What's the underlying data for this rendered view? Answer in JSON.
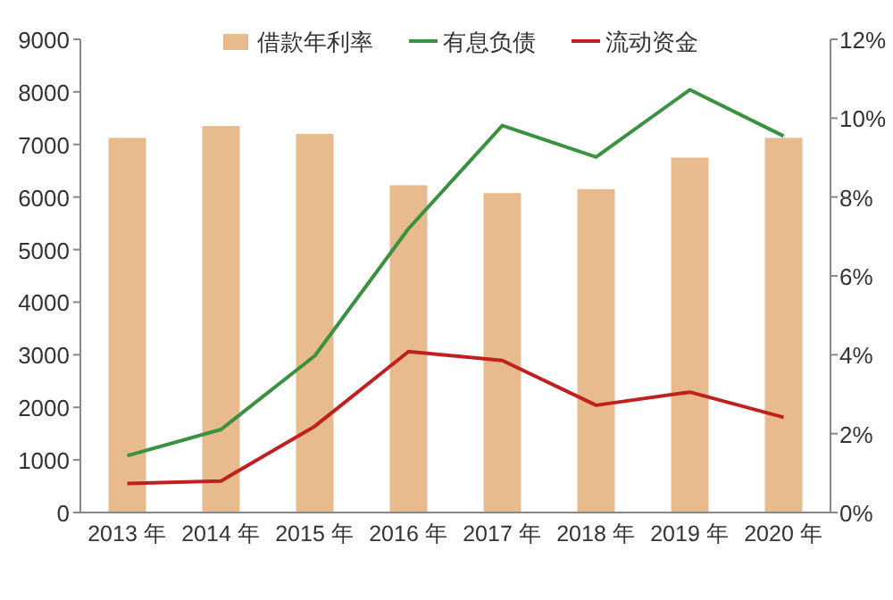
{
  "chart_data": {
    "type": "bar",
    "categories": [
      "2013 年",
      "2014 年",
      "2015 年",
      "2016 年",
      "2017 年",
      "2018 年",
      "2019 年",
      "2020 年"
    ],
    "series": [
      {
        "name": "借款年利率",
        "axis": "y2",
        "color": "#e8bb8e",
        "values": [
          9.5,
          9.8,
          9.6,
          8.3,
          8.1,
          8.2,
          9.0,
          9.5
        ]
      },
      {
        "name": "有息负债",
        "type": "line",
        "axis": "y",
        "color": "#3a913f",
        "values": [
          1080,
          1580,
          2980,
          5400,
          7360,
          6760,
          8040,
          7160
        ]
      },
      {
        "name": "流动资金",
        "type": "line",
        "axis": "y",
        "color": "#c0201f",
        "values": [
          550,
          600,
          1640,
          3060,
          2890,
          2040,
          2290,
          1810
        ]
      }
    ],
    "ylim": [
      0,
      9000
    ],
    "yticks": [
      0,
      1000,
      2000,
      3000,
      4000,
      5000,
      6000,
      7000,
      8000,
      9000
    ],
    "y2lim": [
      0,
      12
    ],
    "y2ticks": [
      {
        "value": 0,
        "label": "0%"
      },
      {
        "value": 2,
        "label": "2%"
      },
      {
        "value": 4,
        "label": "4%"
      },
      {
        "value": 6,
        "label": "6%"
      },
      {
        "value": 8,
        "label": "8%"
      },
      {
        "value": 10,
        "label": "10%"
      },
      {
        "value": 12,
        "label": "12%"
      }
    ],
    "legend": "top"
  }
}
